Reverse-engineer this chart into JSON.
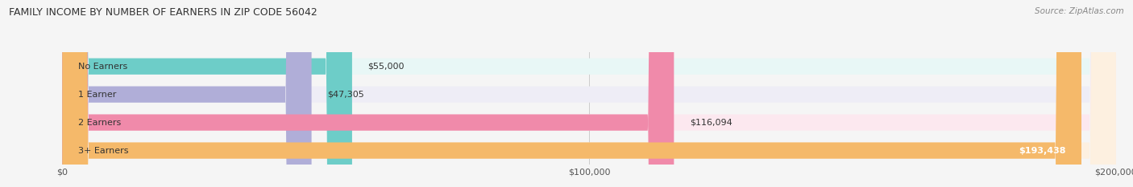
{
  "title": "FAMILY INCOME BY NUMBER OF EARNERS IN ZIP CODE 56042",
  "source": "Source: ZipAtlas.com",
  "categories": [
    "No Earners",
    "1 Earner",
    "2 Earners",
    "3+ Earners"
  ],
  "values": [
    55000,
    47305,
    116094,
    193438
  ],
  "value_labels": [
    "$55,000",
    "$47,305",
    "$116,094",
    "$193,438"
  ],
  "bar_colors": [
    "#6dcdc8",
    "#b0aed8",
    "#f08aaa",
    "#f5b96a"
  ],
  "bar_bg_colors": [
    "#e8f7f6",
    "#eeedf6",
    "#fce8ef",
    "#fdf0e0"
  ],
  "xmax": 200000,
  "xticks": [
    0,
    100000,
    200000
  ],
  "xtick_labels": [
    "$0",
    "$100,000",
    "$200,000"
  ],
  "title_fontsize": 9,
  "source_fontsize": 7.5,
  "label_fontsize": 8,
  "value_fontsize": 8,
  "bar_height": 0.58,
  "figsize": [
    14.06,
    2.33
  ],
  "dpi": 100
}
